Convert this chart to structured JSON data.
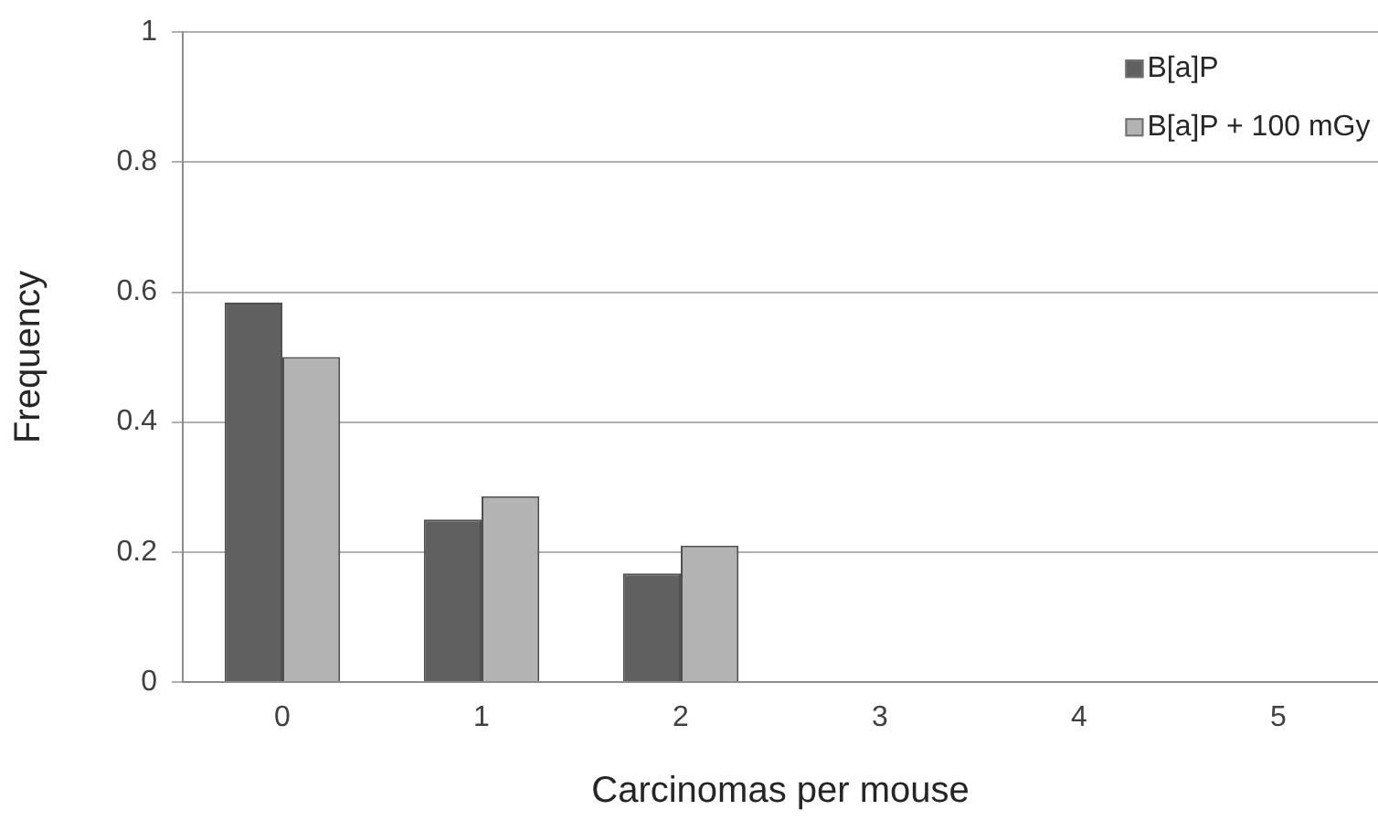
{
  "chart_data": {
    "type": "bar",
    "xlabel": "Carcinomas per mouse",
    "ylabel": "Frequency",
    "categories": [
      "0",
      "1",
      "2",
      "3",
      "4",
      "5"
    ],
    "series": [
      {
        "name": "B[a]P",
        "color": "#606060",
        "values": [
          0.584,
          0.25,
          0.167,
          0,
          0,
          0
        ]
      },
      {
        "name": "B[a]P + 100 mGy",
        "color": "#b3b3b3",
        "values": [
          0.5,
          0.286,
          0.21,
          0,
          0,
          0
        ]
      }
    ],
    "ylim": [
      0,
      1
    ],
    "yticks": [
      0,
      0.2,
      0.4,
      0.6,
      0.8,
      1
    ],
    "grid": "y",
    "legend": "top right"
  }
}
